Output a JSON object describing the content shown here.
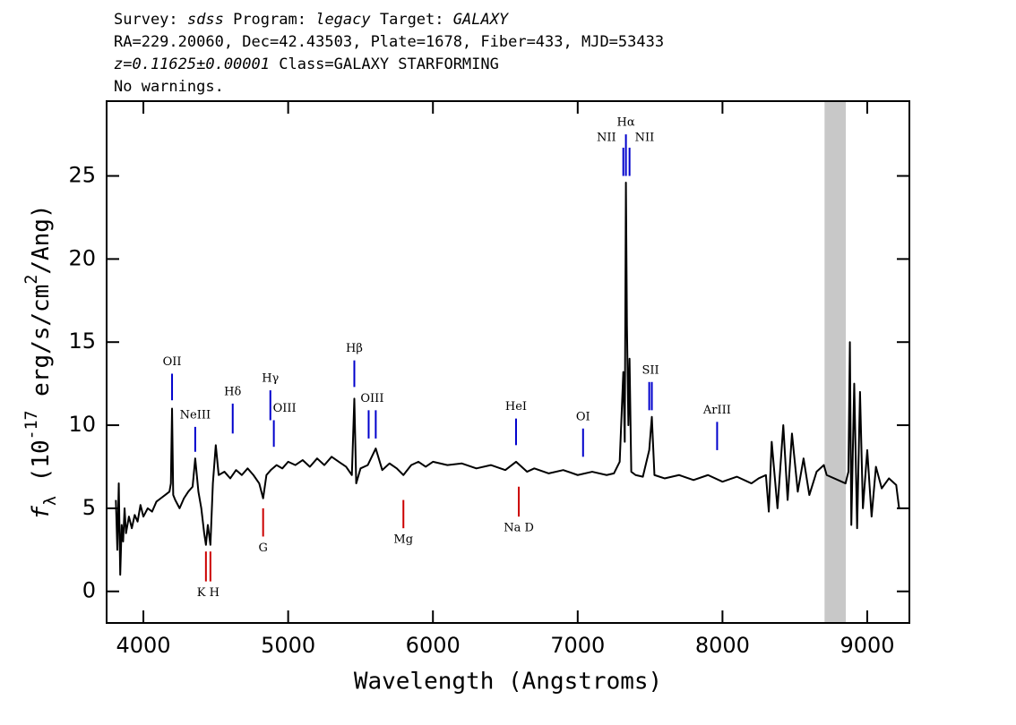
{
  "chart_data": {
    "type": "line",
    "title_lines": [
      [
        {
          "text": "Survey: "
        },
        {
          "text": "sdss",
          "italic": true
        },
        {
          "text": " Program: "
        },
        {
          "text": "legacy",
          "italic": true
        },
        {
          "text": " Target: "
        },
        {
          "text": "GALAXY",
          "italic": true
        }
      ],
      [
        {
          "text": "RA=229.20060, Dec=42.43503, Plate=1678, Fiber=433, MJD=53433"
        }
      ],
      [
        {
          "text": "z=0.11625±0.00001",
          "italic": true
        },
        {
          "text": " Class=GALAXY STARFORMING"
        }
      ],
      [
        {
          "text": "No warnings."
        }
      ]
    ],
    "xlabel": "Wavelength (Angstroms)",
    "ylabel": [
      {
        "text": "f",
        "italic": true
      },
      {
        "text": "λ",
        "sub": true
      },
      {
        "text": " (10"
      },
      {
        "text": "-17",
        "sup": true
      },
      {
        "text": " erg/s/cm"
      },
      {
        "text": "2",
        "sup": true
      },
      {
        "text": "/Ang)"
      }
    ],
    "xlim": [
      3746,
      9291
    ],
    "ylim": [
      -1.9,
      29.5
    ],
    "xticks": [
      4000,
      5000,
      6000,
      7000,
      8000,
      9000
    ],
    "yticks": [
      0,
      5,
      10,
      15,
      20,
      25
    ],
    "mask_region": [
      8705,
      8852
    ],
    "mask_color": "#c8c8c8",
    "series": [
      {
        "color": "#000000",
        "x": [
          3810,
          3820,
          3830,
          3840,
          3850,
          3860,
          3870,
          3880,
          3900,
          3920,
          3940,
          3960,
          3980,
          4000,
          4030,
          4060,
          4090,
          4120,
          4150,
          4180,
          4190,
          4198,
          4206,
          4220,
          4250,
          4280,
          4310,
          4340,
          4358,
          4380,
          4400,
          4420,
          4432,
          4445,
          4463,
          4480,
          4500,
          4520,
          4560,
          4600,
          4640,
          4680,
          4720,
          4760,
          4800,
          4827,
          4850,
          4880,
          4920,
          4960,
          5000,
          5050,
          5100,
          5150,
          5200,
          5250,
          5300,
          5350,
          5400,
          5440,
          5457,
          5470,
          5500,
          5550,
          5605,
          5650,
          5700,
          5750,
          5796,
          5850,
          5900,
          5950,
          6000,
          6100,
          6200,
          6300,
          6400,
          6500,
          6574,
          6650,
          6700,
          6800,
          6900,
          7000,
          7100,
          7200,
          7250,
          7290,
          7315,
          7325,
          7333,
          7340,
          7350,
          7358,
          7370,
          7400,
          7450,
          7494,
          7512,
          7530,
          7600,
          7700,
          7800,
          7900,
          8000,
          8100,
          8200,
          8250,
          8300,
          8320,
          8340,
          8380,
          8420,
          8450,
          8480,
          8520,
          8560,
          8600,
          8650,
          8700,
          8720,
          8850,
          8870,
          8880,
          8890,
          8910,
          8930,
          8950,
          8970,
          9000,
          9030,
          9060,
          9100,
          9150,
          9200,
          9220
        ],
        "values": [
          5.5,
          2.5,
          6.5,
          1.0,
          4.0,
          3.0,
          5.0,
          3.5,
          4.5,
          3.8,
          4.6,
          4.2,
          5.2,
          4.5,
          5.0,
          4.8,
          5.4,
          5.6,
          5.8,
          6.0,
          6.5,
          11.0,
          5.8,
          5.5,
          5.0,
          5.6,
          6.0,
          6.3,
          8.0,
          6.0,
          5.0,
          3.5,
          2.8,
          4.0,
          2.8,
          6.5,
          8.8,
          7.0,
          7.2,
          6.8,
          7.3,
          7.0,
          7.4,
          7.0,
          6.5,
          5.6,
          7.0,
          7.3,
          7.6,
          7.4,
          7.8,
          7.6,
          7.9,
          7.5,
          8.0,
          7.6,
          8.1,
          7.8,
          7.5,
          7.0,
          11.6,
          6.5,
          7.4,
          7.6,
          8.6,
          7.3,
          7.7,
          7.4,
          7.0,
          7.6,
          7.8,
          7.5,
          7.8,
          7.6,
          7.7,
          7.4,
          7.6,
          7.3,
          7.8,
          7.2,
          7.4,
          7.1,
          7.3,
          7.0,
          7.2,
          7.0,
          7.1,
          7.8,
          13.2,
          9.0,
          24.6,
          16.0,
          10.0,
          14.0,
          7.2,
          7.0,
          6.9,
          8.5,
          10.5,
          7.0,
          6.8,
          7.0,
          6.7,
          7.0,
          6.6,
          6.9,
          6.5,
          6.8,
          7.0,
          4.8,
          9.0,
          5.0,
          10.0,
          5.5,
          9.5,
          6.0,
          8.0,
          5.8,
          7.2,
          7.6,
          7.0,
          6.5,
          7.2,
          15.0,
          4.0,
          12.5,
          3.8,
          12.0,
          5.0,
          8.5,
          4.5,
          7.5,
          6.2,
          6.8,
          6.4,
          5.0
        ]
      }
    ],
    "markers": [
      {
        "label": "OII",
        "x": [
          4198
        ],
        "ymin": 11.5,
        "ymax": 13.1,
        "color": "#0000cc",
        "side": "above"
      },
      {
        "label": "NeIII",
        "x": [
          4358
        ],
        "ymin": 8.4,
        "ymax": 9.9,
        "color": "#0000cc",
        "side": "above"
      },
      {
        "label": "Hδ",
        "x": [
          4617
        ],
        "ymin": 9.5,
        "ymax": 11.3,
        "color": "#0000cc",
        "side": "above"
      },
      {
        "label": "Hγ",
        "x": [
          4877
        ],
        "ymin": 10.3,
        "ymax": 12.1,
        "color": "#0000cc",
        "side": "above"
      },
      {
        "label": "OIII",
        "x": [
          4901
        ],
        "ymin": 8.7,
        "ymax": 10.3,
        "color": "#0000cc",
        "side": "above-right"
      },
      {
        "label": "Hβ",
        "x": [
          5457
        ],
        "ymin": 12.3,
        "ymax": 13.9,
        "color": "#0000cc",
        "side": "above"
      },
      {
        "label": "OIII",
        "x": [
          5556,
          5605
        ],
        "ymin": 9.2,
        "ymax": 10.9,
        "color": "#0000cc",
        "side": "above"
      },
      {
        "label": "HeI",
        "x": [
          6574
        ],
        "ymin": 8.8,
        "ymax": 10.4,
        "color": "#0000cc",
        "side": "above"
      },
      {
        "label": "OI",
        "x": [
          7037
        ],
        "ymin": 8.1,
        "ymax": 9.8,
        "color": "#0000cc",
        "side": "above"
      },
      {
        "label": "NII",
        "x": [
          7315
        ],
        "ymin": 25.0,
        "ymax": 26.7,
        "color": "#0000cc",
        "side": "left"
      },
      {
        "label": "Hα",
        "x": [
          7333
        ],
        "ymin": 25.0,
        "ymax": 27.5,
        "color": "#0000cc",
        "side": "above"
      },
      {
        "label": "NII",
        "x": [
          7358
        ],
        "ymin": 25.0,
        "ymax": 26.7,
        "color": "#0000cc",
        "side": "right"
      },
      {
        "label": "SII",
        "x": [
          7494,
          7512
        ],
        "ymin": 10.9,
        "ymax": 12.6,
        "color": "#0000cc",
        "side": "above"
      },
      {
        "label": "ArIII",
        "x": [
          7963
        ],
        "ymin": 8.5,
        "ymax": 10.2,
        "color": "#0000cc",
        "side": "above"
      },
      {
        "label": "K H",
        "x": [
          4432,
          4463
        ],
        "ymin": 0.6,
        "ymax": 2.4,
        "color": "#cc0000",
        "side": "below"
      },
      {
        "label": "G",
        "x": [
          4827
        ],
        "ymin": 3.3,
        "ymax": 5.0,
        "color": "#cc0000",
        "side": "below"
      },
      {
        "label": "Mg",
        "x": [
          5796
        ],
        "ymin": 3.8,
        "ymax": 5.5,
        "color": "#cc0000",
        "side": "below"
      },
      {
        "label": "Na D",
        "x": [
          6593
        ],
        "ymin": 4.5,
        "ymax": 6.3,
        "color": "#cc0000",
        "side": "below"
      }
    ]
  }
}
